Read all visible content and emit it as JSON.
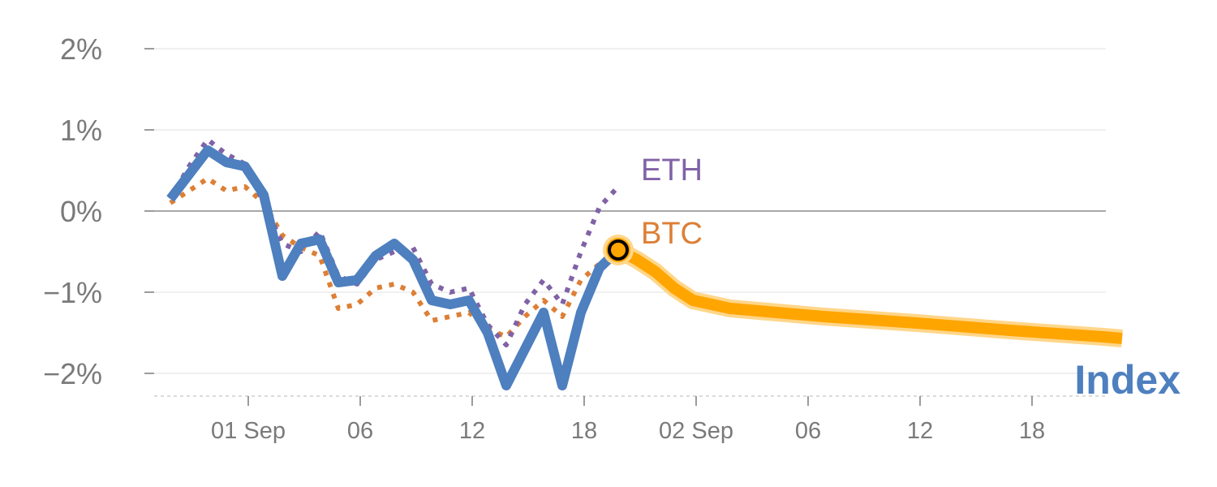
{
  "chart_data": {
    "type": "line",
    "title": "",
    "xlabel": "",
    "ylabel": "",
    "ylim": [
      -2.28,
      2.3
    ],
    "y_ticks": [
      2,
      1,
      0,
      -1,
      -2
    ],
    "y_tick_labels": [
      "2%",
      "1%",
      "0%",
      "−1%",
      "−2%"
    ],
    "x_tick_labels": [
      "01 Sep",
      "06",
      "12",
      "18",
      "02 Sep",
      "06",
      "12",
      "18"
    ],
    "grid": true,
    "colors": {
      "index": "#4e7fbf",
      "eth": "#8062a6",
      "btc": "#dd7f35",
      "forecast": "#ffa500",
      "forecast_halo": "#ffd68a",
      "grid": "#e6e6e6",
      "zero_line": "#8c8c8c",
      "text": "#7a7a7a"
    },
    "series": [
      {
        "name": "Index",
        "style": "solid",
        "points": [
          [
            0,
            0.15
          ],
          [
            1,
            0.45
          ],
          [
            2,
            0.75
          ],
          [
            3,
            0.6
          ],
          [
            4,
            0.55
          ],
          [
            5,
            0.2
          ],
          [
            6,
            -0.8
          ],
          [
            7,
            -0.4
          ],
          [
            8,
            -0.35
          ],
          [
            9,
            -0.88
          ],
          [
            10,
            -0.85
          ],
          [
            11,
            -0.55
          ],
          [
            12,
            -0.4
          ],
          [
            13,
            -0.6
          ],
          [
            14,
            -1.1
          ],
          [
            15,
            -1.15
          ],
          [
            16,
            -1.1
          ],
          [
            17,
            -1.5
          ],
          [
            18,
            -2.15
          ],
          [
            19,
            -1.7
          ],
          [
            20,
            -1.25
          ],
          [
            21,
            -2.15
          ],
          [
            22,
            -1.25
          ],
          [
            23,
            -0.7
          ],
          [
            24,
            -0.48
          ]
        ]
      },
      {
        "name": "ETH",
        "style": "dotted",
        "points": [
          [
            0,
            0.15
          ],
          [
            1,
            0.55
          ],
          [
            2,
            0.88
          ],
          [
            3,
            0.7
          ],
          [
            4,
            0.58
          ],
          [
            5,
            0.1
          ],
          [
            6,
            -0.4
          ],
          [
            7,
            -0.5
          ],
          [
            8,
            -0.25
          ],
          [
            9,
            -0.8
          ],
          [
            10,
            -0.9
          ],
          [
            11,
            -0.6
          ],
          [
            12,
            -0.5
          ],
          [
            13,
            -0.45
          ],
          [
            14,
            -0.9
          ],
          [
            15,
            -1.0
          ],
          [
            16,
            -0.95
          ],
          [
            17,
            -1.4
          ],
          [
            18,
            -1.65
          ],
          [
            19,
            -1.15
          ],
          [
            20,
            -0.85
          ],
          [
            21,
            -1.15
          ],
          [
            22,
            -0.5
          ],
          [
            23,
            0.05
          ],
          [
            24,
            0.3
          ]
        ]
      },
      {
        "name": "BTC",
        "style": "dotted",
        "points": [
          [
            0,
            0.1
          ],
          [
            1,
            0.25
          ],
          [
            2,
            0.4
          ],
          [
            3,
            0.25
          ],
          [
            4,
            0.3
          ],
          [
            5,
            0.1
          ],
          [
            6,
            -0.3
          ],
          [
            7,
            -0.45
          ],
          [
            8,
            -0.55
          ],
          [
            9,
            -1.2
          ],
          [
            10,
            -1.15
          ],
          [
            11,
            -0.95
          ],
          [
            12,
            -0.9
          ],
          [
            13,
            -1.0
          ],
          [
            14,
            -1.35
          ],
          [
            15,
            -1.3
          ],
          [
            16,
            -1.25
          ],
          [
            17,
            -1.45
          ],
          [
            18,
            -1.55
          ],
          [
            19,
            -1.3
          ],
          [
            20,
            -1.1
          ],
          [
            21,
            -1.3
          ],
          [
            22,
            -0.85
          ],
          [
            23,
            -0.65
          ],
          [
            24,
            -0.5
          ]
        ]
      },
      {
        "name": "Index forecast",
        "style": "thick",
        "points": [
          [
            24,
            -0.48
          ],
          [
            25,
            -0.6
          ],
          [
            26,
            -0.75
          ],
          [
            27,
            -0.95
          ],
          [
            28,
            -1.1
          ],
          [
            29,
            -1.15
          ],
          [
            30,
            -1.2
          ],
          [
            31,
            -1.22
          ],
          [
            35,
            -1.3
          ],
          [
            40,
            -1.38
          ],
          [
            45,
            -1.47
          ],
          [
            50,
            -1.55
          ],
          [
            51,
            -1.57
          ]
        ]
      }
    ],
    "highlight_point": {
      "x": 24,
      "y": -0.48
    },
    "labels": {
      "eth": "ETH",
      "btc": "BTC",
      "index": "Index"
    }
  }
}
